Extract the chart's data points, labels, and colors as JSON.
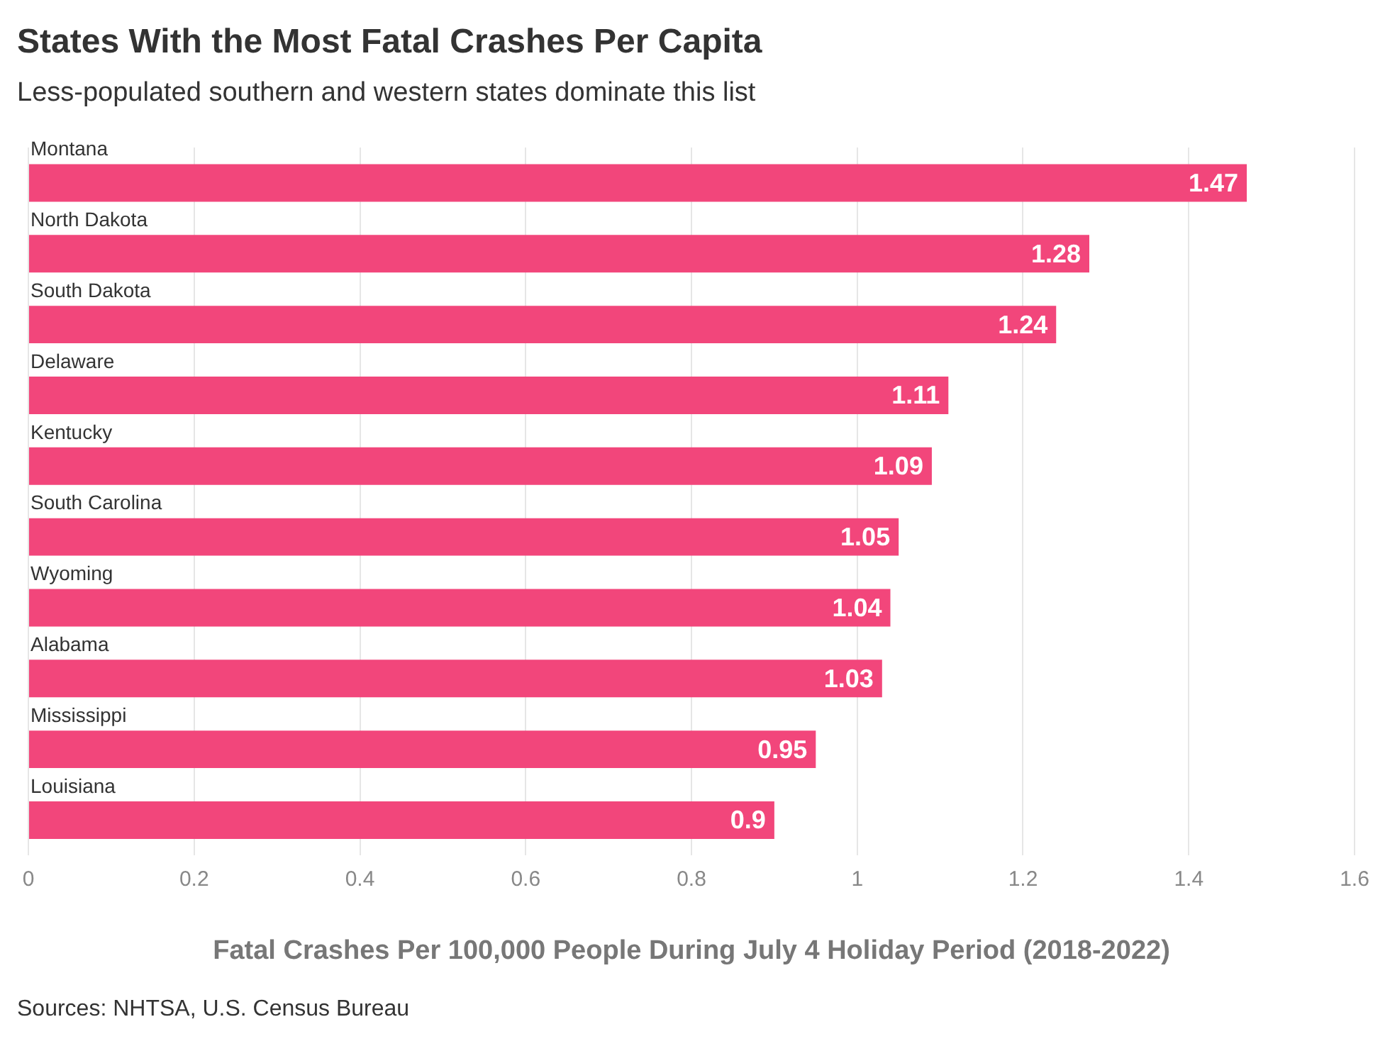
{
  "chart_data": {
    "type": "bar",
    "orientation": "horizontal",
    "title": "States With the Most Fatal Crashes Per Capita",
    "subtitle": "Less-populated southern and western states dominate this list",
    "xlabel": "Fatal Crashes Per 100,000 People During July 4 Holiday Period (2018-2022)",
    "categories": [
      "Montana",
      "North Dakota",
      "South Dakota",
      "Delaware",
      "Kentucky",
      "South Carolina",
      "Wyoming",
      "Alabama",
      "Mississippi",
      "Louisiana"
    ],
    "values": [
      1.47,
      1.28,
      1.24,
      1.11,
      1.09,
      1.05,
      1.04,
      1.03,
      0.95,
      0.9
    ],
    "color": "#f2467b",
    "xlim": [
      0,
      1.6
    ],
    "xticks": [
      0,
      0.2,
      0.4,
      0.6,
      0.8,
      1,
      1.2,
      1.4,
      1.6
    ],
    "grid": "x",
    "data_labels": true,
    "annotations": [
      "Sources: NHTSA, U.S. Census Bureau"
    ]
  }
}
